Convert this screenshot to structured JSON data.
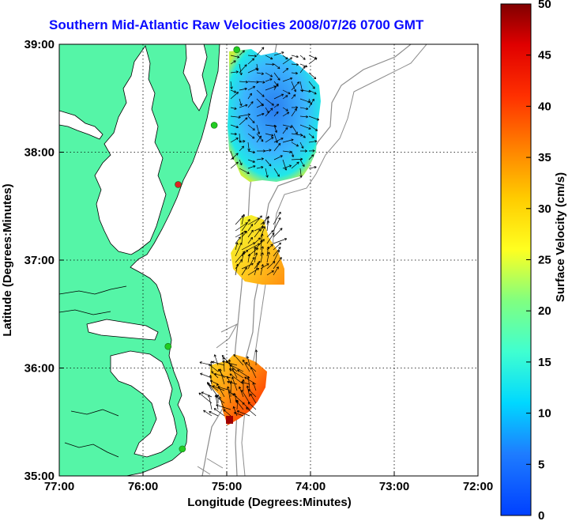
{
  "title": "Southern Mid-Atlantic Raw Velocities 2008/07/26 0700 GMT",
  "axes": {
    "xlabel": "Longitude (Degrees:Minutes)",
    "ylabel": "Latitude (Degrees:Minutes)",
    "xticks": [
      "77:00",
      "76:00",
      "75:00",
      "74:00",
      "73:00",
      "72:00"
    ],
    "yticks": [
      "39:00",
      "38:00",
      "37:00",
      "36:00",
      "35:00"
    ],
    "x_range_deg_west": [
      77,
      72
    ],
    "y_range_deg_north": [
      35,
      39
    ],
    "grid": "dotted"
  },
  "colorbar": {
    "label": "Surface Velocity (cm/s)",
    "ticks": [
      "0",
      "5",
      "10",
      "15",
      "20",
      "25",
      "30",
      "35",
      "40",
      "45",
      "50"
    ],
    "range": [
      0,
      50
    ],
    "colormap": "jet"
  },
  "colors": {
    "land": "#55f5a7",
    "coast_line": "#000000",
    "bathymetry": "#8c8c8c",
    "title": "#0a0aff",
    "site_active": "#22cc22",
    "site_inactive": "#dd2222"
  },
  "stations": [
    {
      "lon": 74.88,
      "lat": 38.95,
      "status": "active"
    },
    {
      "lon": 75.15,
      "lat": 38.25,
      "status": "active"
    },
    {
      "lon": 75.58,
      "lat": 37.7,
      "status": "inactive"
    },
    {
      "lon": 75.7,
      "lat": 36.2,
      "status": "active"
    },
    {
      "lon": 75.53,
      "lat": 35.25,
      "status": "active"
    }
  ]
}
